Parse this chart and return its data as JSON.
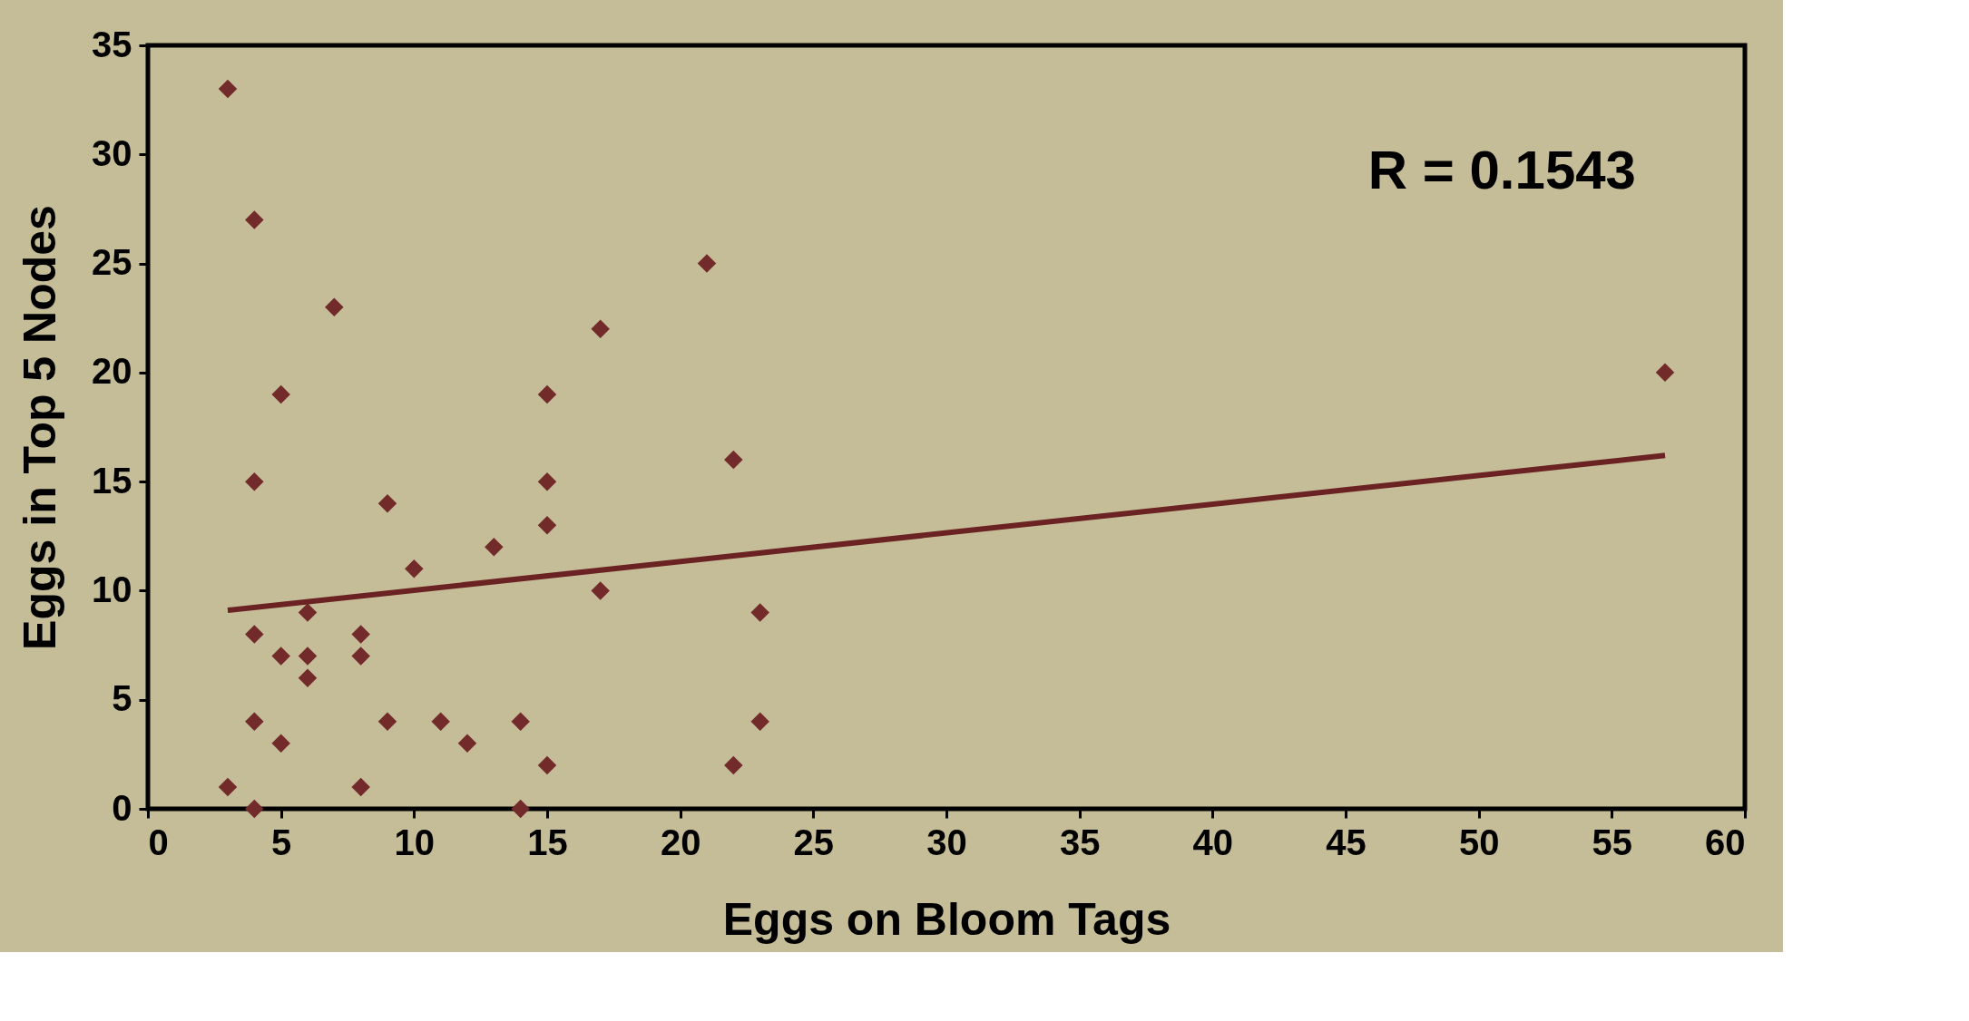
{
  "chart_data": {
    "type": "scatter",
    "xlabel": "Eggs on Bloom Tags",
    "ylabel": "Eggs in Top 5 Nodes",
    "annotations": [
      "R = 0.1543"
    ],
    "series": [
      {
        "marker": "diamond",
        "color": "#722a2a",
        "x": [
          3,
          4,
          7,
          5,
          4,
          21,
          17,
          15,
          22,
          57,
          15,
          9,
          15,
          13,
          10,
          17,
          6,
          23,
          4,
          8,
          5,
          6,
          8,
          6,
          4,
          9,
          11,
          14,
          23,
          5,
          12,
          15,
          22,
          3,
          8,
          4,
          14
        ],
        "values": [
          33,
          27,
          23,
          19,
          15,
          25,
          22,
          19,
          16,
          20,
          15,
          14,
          13,
          12,
          11,
          10,
          9,
          9,
          8,
          8,
          7,
          7,
          7,
          6,
          4,
          4,
          4,
          4,
          4,
          3,
          3,
          2,
          2,
          1,
          1,
          0,
          0
        ]
      },
      {
        "type": "line",
        "color": "#6b2222",
        "x": [
          3,
          57
        ],
        "values": [
          9.1,
          16.2
        ]
      }
    ],
    "xlim": [
      0,
      60
    ],
    "xticks": [
      0,
      5,
      10,
      15,
      20,
      25,
      30,
      35,
      40,
      45,
      50,
      55,
      60
    ],
    "ylim": [
      0,
      35
    ],
    "yticks": [
      0,
      5,
      10,
      15,
      20,
      25,
      30,
      35
    ],
    "grid": false
  }
}
